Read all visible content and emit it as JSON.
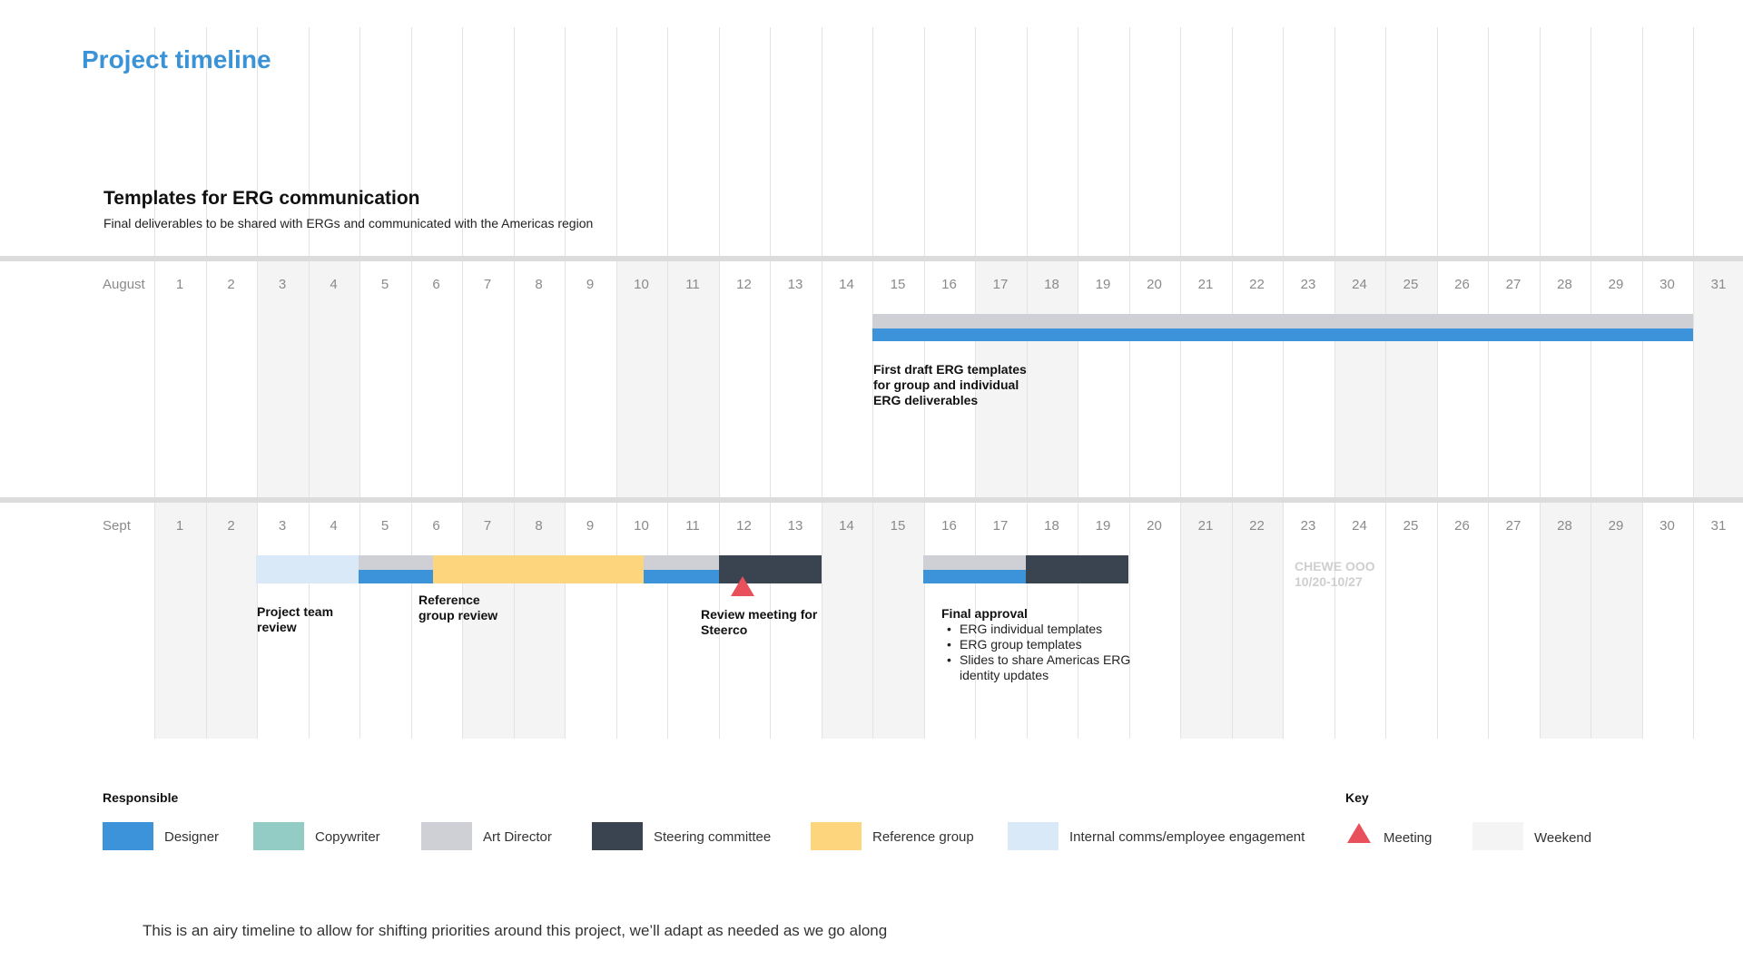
{
  "title": "Project timeline",
  "project": {
    "name": "Templates for ERG communication",
    "description": "Final deliverables to be shared with ERGs and communicated with the Americas region"
  },
  "months": [
    {
      "label": "August",
      "days": [
        "1",
        "2",
        "3",
        "4",
        "5",
        "6",
        "7",
        "8",
        "9",
        "10",
        "11",
        "12",
        "13",
        "14",
        "15",
        "16",
        "17",
        "18",
        "19",
        "20",
        "21",
        "22",
        "23",
        "24",
        "25",
        "26",
        "27",
        "28",
        "29",
        "30",
        "31"
      ],
      "weekend_days": [
        3,
        4,
        10,
        11,
        17,
        18,
        24,
        25,
        31
      ]
    },
    {
      "label": "Sept",
      "days": [
        "1",
        "2",
        "3",
        "4",
        "5",
        "6",
        "7",
        "8",
        "9",
        "10",
        "11",
        "12",
        "13",
        "14",
        "15",
        "16",
        "17",
        "18",
        "19",
        "20",
        "21",
        "22",
        "23",
        "24",
        "25",
        "26",
        "27",
        "28",
        "29",
        "30",
        "31"
      ],
      "weekend_days": [
        1,
        2,
        7,
        8,
        14,
        15,
        21,
        22,
        28,
        29
      ]
    }
  ],
  "tasks": {
    "august_first_draft": "First draft ERG templates for group and individual ERG deliverables",
    "project_team_review": "Project team review",
    "reference_group_review": "Reference group review",
    "review_meeting": "Review meeting for Steerco",
    "final_approval": "Final approval",
    "final_approval_items": [
      "ERG individual templates",
      "ERG group templates",
      "Slides to share Americas ERG identity updates"
    ],
    "ooo_line1": "CHEWE OOO",
    "ooo_line2": "10/20-10/27"
  },
  "legend": {
    "responsible_heading": "Responsible",
    "key_heading": "Key",
    "designer": "Designer",
    "copywriter": "Copywriter",
    "art_director": "Art Director",
    "steering_committee": "Steering committee",
    "reference_group": "Reference group",
    "internal_comms": "Internal comms/employee engagement",
    "meeting": "Meeting",
    "weekend": "Weekend"
  },
  "colors": {
    "designer": "#3d93d9",
    "copywriter": "#93ccc4",
    "art_director": "#cfd0d5",
    "steering_committee": "#3a4451",
    "reference_group": "#fdd57d",
    "internal_comms": "#d9e9f8",
    "meeting": "#e8505b",
    "weekend": "#f4f4f4",
    "title": "#3a93d6"
  },
  "footer": "This is an airy timeline to allow for shifting priorities around this project, we’ll adapt as needed as we go along"
}
